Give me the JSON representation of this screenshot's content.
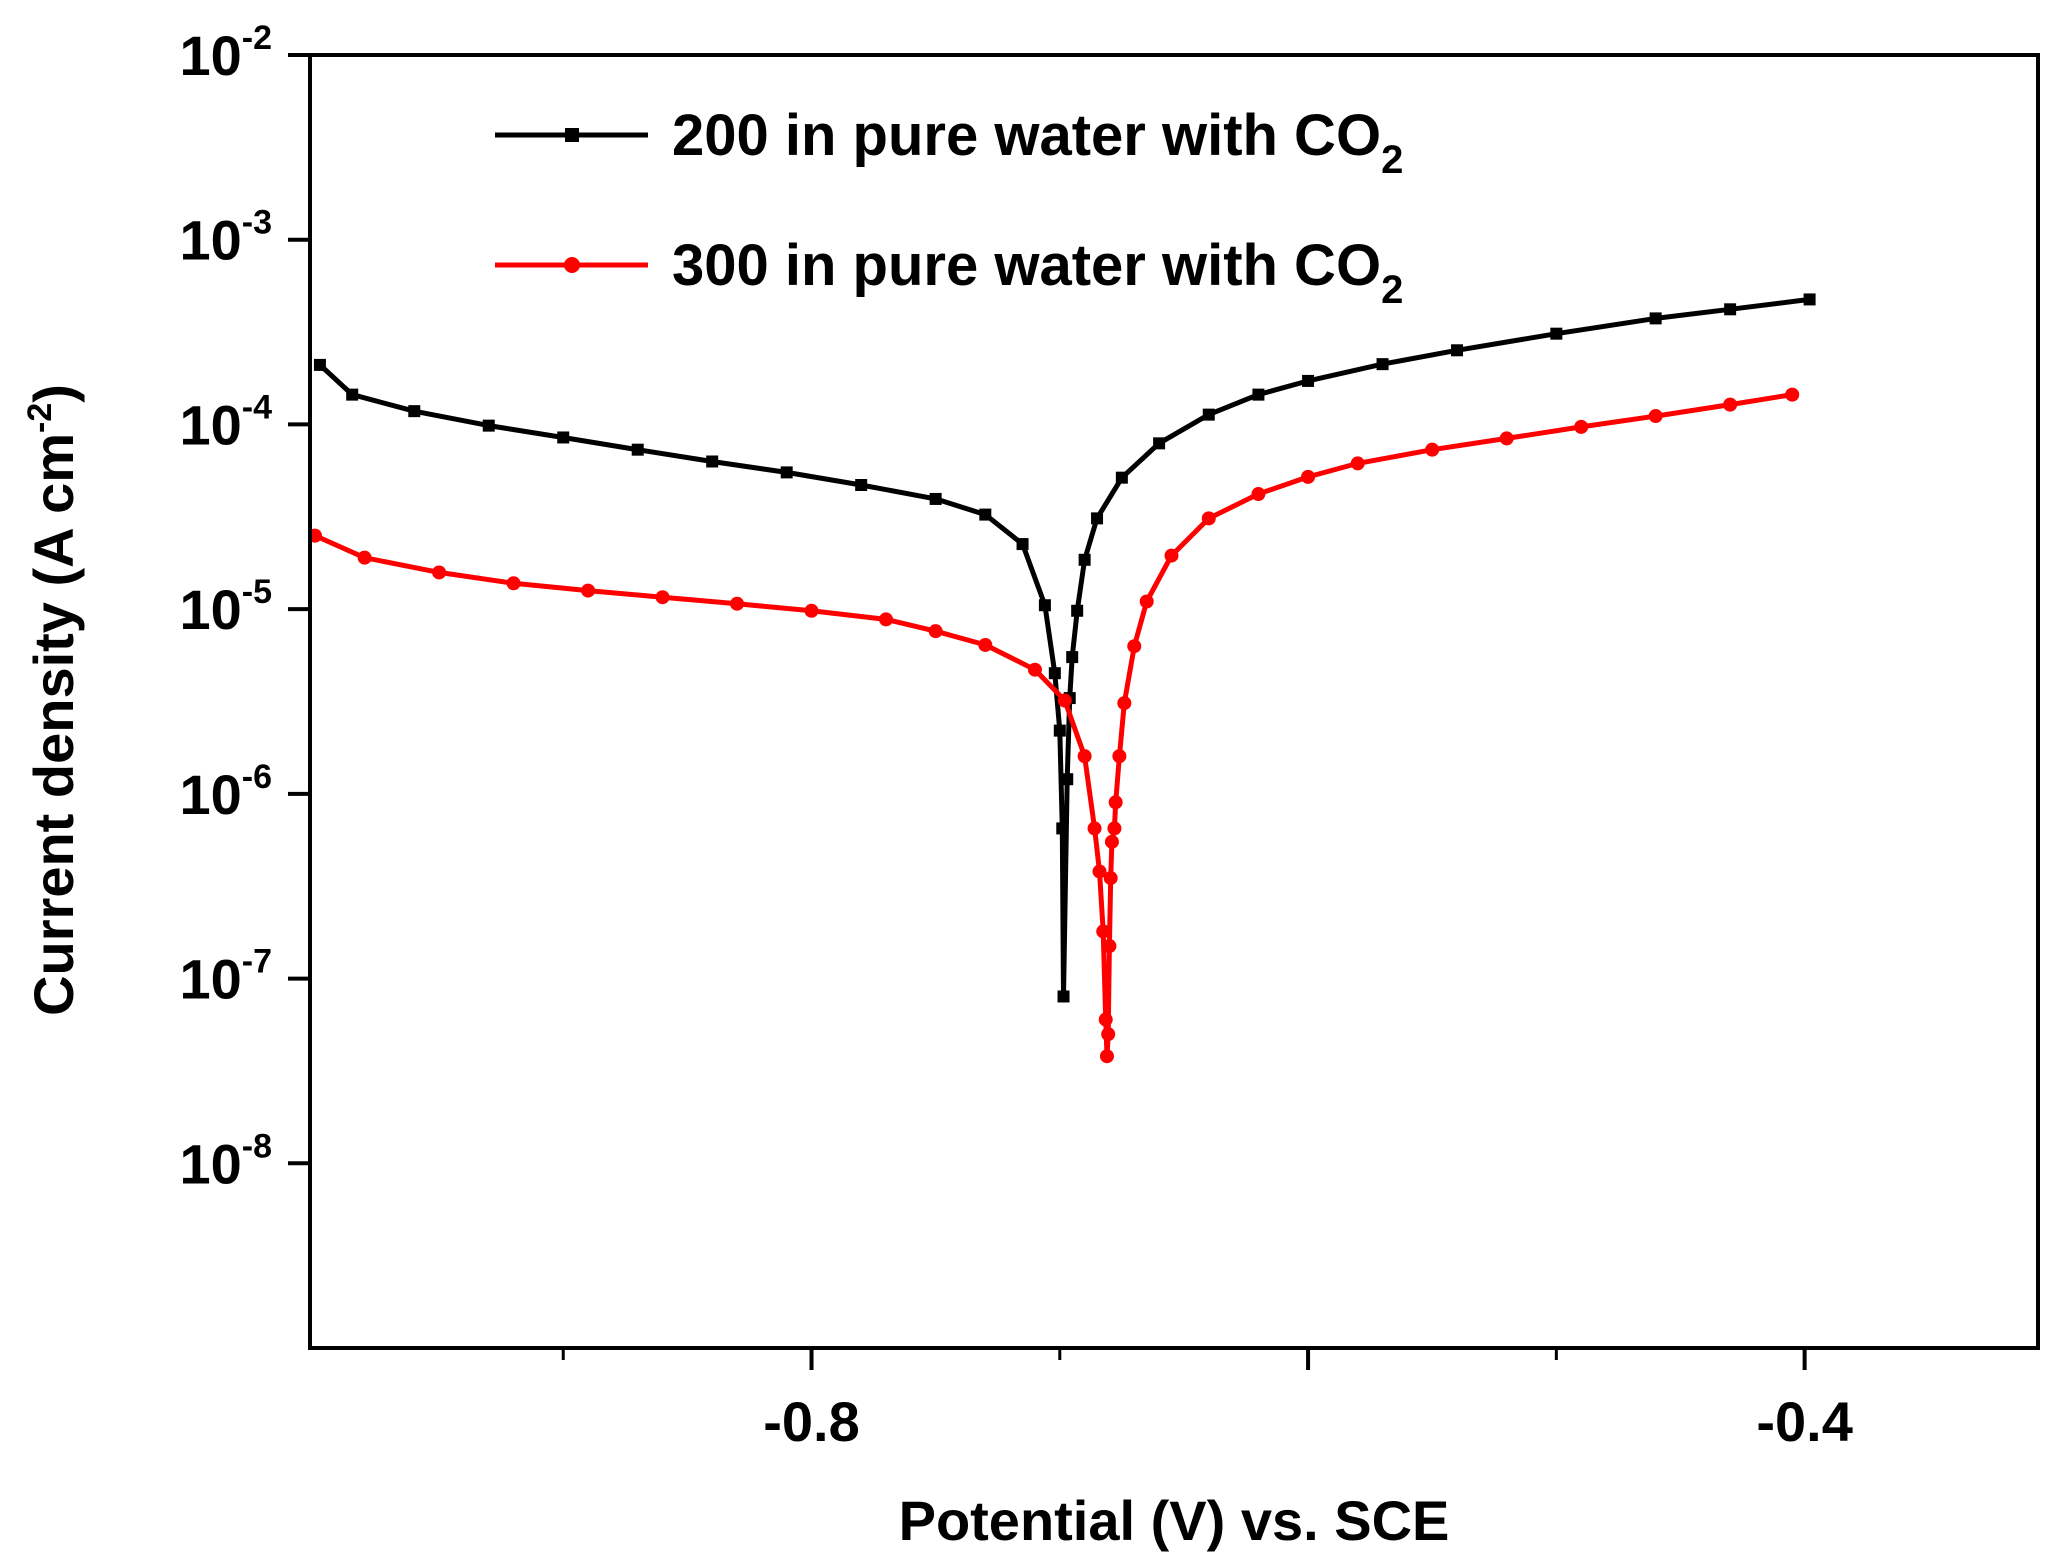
{
  "chart_data": {
    "type": "line",
    "title": "",
    "xlabel": "Potential (V) vs. SCE",
    "ylabel": "Current density (A cm",
    "ylabel_exponent": "-2",
    "ylabel_close": ")",
    "xscale": "linear",
    "yscale": "log",
    "xlim": [
      -1.002,
      -0.306
    ],
    "ylim": [
      1e-09,
      0.01
    ],
    "x_ticks": [
      {
        "value": -0.8,
        "label": "-0.8"
      },
      {
        "value": -0.6,
        "label": ""
      },
      {
        "value": -0.4,
        "label": "-0.4"
      }
    ],
    "x_minor_ticks": [
      -0.9,
      -0.7,
      -0.5
    ],
    "y_ticks": [
      {
        "value": 0.01,
        "base": "10",
        "exp": "-2"
      },
      {
        "value": 0.001,
        "base": "10",
        "exp": "-3"
      },
      {
        "value": 0.0001,
        "base": "10",
        "exp": "-4"
      },
      {
        "value": 1e-05,
        "base": "10",
        "exp": "-5"
      },
      {
        "value": 1e-06,
        "base": "10",
        "exp": "-6"
      },
      {
        "value": 1e-07,
        "base": "10",
        "exp": "-7"
      },
      {
        "value": 1e-08,
        "base": "10",
        "exp": "-8"
      }
    ],
    "legend_position": "top-left",
    "series": [
      {
        "name": "200 in pure water with CO",
        "name_subscript": "2",
        "color": "#000000",
        "marker": "square",
        "x": [
          -0.998,
          -0.985,
          -0.96,
          -0.93,
          -0.9,
          -0.87,
          -0.84,
          -0.81,
          -0.78,
          -0.75,
          -0.73,
          -0.715,
          -0.706,
          -0.702,
          -0.7,
          -0.699,
          -0.6985,
          -0.697,
          -0.696,
          -0.695,
          -0.693,
          -0.69,
          -0.685,
          -0.675,
          -0.66,
          -0.64,
          -0.62,
          -0.6,
          -0.57,
          -0.54,
          -0.5,
          -0.46,
          -0.43,
          -0.398
        ],
        "y": [
          0.00021,
          0.000145,
          0.000118,
          9.85e-05,
          8.5e-05,
          7.3e-05,
          6.3e-05,
          5.5e-05,
          4.7e-05,
          3.95e-05,
          3.25e-05,
          2.25e-05,
          1.05e-05,
          4.5e-06,
          2.2e-06,
          6.5e-07,
          8e-08,
          1.2e-06,
          3.3e-06,
          5.5e-06,
          9.8e-06,
          1.85e-05,
          3.1e-05,
          5.15e-05,
          7.9e-05,
          0.000113,
          0.000145,
          0.000172,
          0.000212,
          0.000252,
          0.00031,
          0.000375,
          0.00042,
          0.000475
        ]
      },
      {
        "name": "300 in pure water with CO",
        "name_subscript": "2",
        "color": "#ff0000",
        "marker": "circle",
        "x": [
          -1.0,
          -0.98,
          -0.95,
          -0.92,
          -0.89,
          -0.86,
          -0.83,
          -0.8,
          -0.77,
          -0.75,
          -0.73,
          -0.71,
          -0.698,
          -0.69,
          -0.686,
          -0.684,
          -0.6825,
          -0.6815,
          -0.681,
          -0.6805,
          -0.68,
          -0.6795,
          -0.679,
          -0.678,
          -0.6775,
          -0.676,
          -0.674,
          -0.67,
          -0.665,
          -0.655,
          -0.64,
          -0.62,
          -0.6,
          -0.58,
          -0.55,
          -0.52,
          -0.49,
          -0.46,
          -0.43,
          -0.405
        ],
        "y": [
          2.5e-05,
          1.9e-05,
          1.58e-05,
          1.38e-05,
          1.26e-05,
          1.16e-05,
          1.07e-05,
          9.8e-06,
          8.8e-06,
          7.6e-06,
          6.4e-06,
          4.7e-06,
          3.2e-06,
          1.6e-06,
          6.5e-07,
          3.8e-07,
          1.8e-07,
          6e-08,
          3.8e-08,
          5e-08,
          1.5e-07,
          3.5e-07,
          5.5e-07,
          6.5e-07,
          9e-07,
          1.6e-06,
          3.1e-06,
          6.3e-06,
          1.1e-05,
          1.95e-05,
          3.1e-05,
          4.2e-05,
          5.2e-05,
          6.15e-05,
          7.3e-05,
          8.4e-05,
          9.7e-05,
          0.000111,
          0.000128,
          0.000145
        ]
      }
    ]
  }
}
